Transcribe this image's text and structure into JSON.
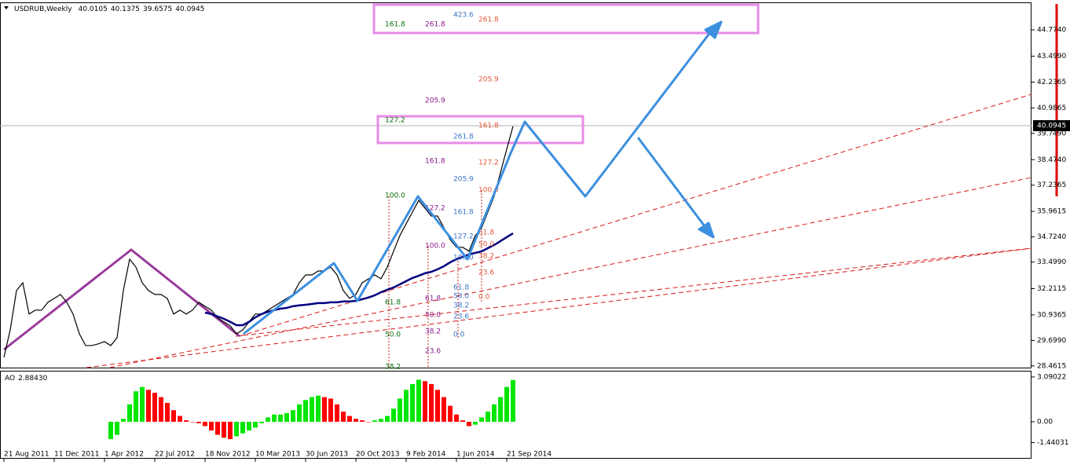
{
  "chart_data": {
    "type": "line",
    "symbol": "USDRUB,Weekly",
    "ohlc": [
      40.0105,
      40.1375,
      39.6575,
      40.0945
    ],
    "categories": [
      "21 Aug 2011",
      null,
      null,
      null,
      null,
      null,
      null,
      null,
      "11 Dec 2011",
      null,
      null,
      null,
      null,
      null,
      null,
      null,
      "1 Apr 2012",
      null,
      null,
      null,
      null,
      null,
      null,
      null,
      "22 Jul 2012",
      null,
      null,
      null,
      null,
      null,
      null,
      null,
      "18 Nov 2012",
      null,
      null,
      null,
      null,
      null,
      null,
      null,
      "10 Mar 2013",
      null,
      null,
      null,
      null,
      null,
      null,
      null,
      "30 Jun 2013",
      null,
      null,
      null,
      null,
      null,
      null,
      null,
      "20 Oct 2013",
      null,
      null,
      null,
      null,
      null,
      null,
      null,
      "9 Feb 2014",
      null,
      null,
      null,
      null,
      null,
      null,
      null,
      "1 Jun 2014",
      null,
      null,
      null,
      null,
      null,
      null,
      null,
      "21 Sep 2014",
      null
    ],
    "series": [
      {
        "color": "#000000",
        "values": [
          28.88,
          30.21,
          32.12,
          32.5,
          30.98,
          31.17,
          31.17,
          31.55,
          31.74,
          31.93,
          31.55,
          30.98,
          30.02,
          29.45,
          29.45,
          29.53,
          29.64,
          29.45,
          29.83,
          32.12,
          33.64,
          33.26,
          32.5,
          32.12,
          31.93,
          31.93,
          31.74,
          30.98,
          31.17,
          30.98,
          31.17,
          31.55,
          31.36,
          31.17,
          30.79,
          30.6,
          30.41,
          30.02,
          30.21,
          30.6,
          30.98,
          30.98,
          31.17,
          31.36,
          31.55,
          31.74,
          31.93,
          32.5,
          32.88,
          32.88,
          33.07,
          33.07,
          33.26,
          32.88,
          32.12,
          31.74,
          31.93,
          32.5,
          32.69,
          32.88,
          32.69,
          33.26,
          34.03,
          34.79,
          35.36,
          35.93,
          36.5,
          36.12,
          35.74,
          35.74,
          35.17,
          34.6,
          34.22,
          34.22,
          34.03,
          34.79,
          35.17,
          35.93,
          36.69,
          37.84,
          38.98,
          40.0945
        ]
      },
      {
        "color": "#000080",
        "values": [
          null,
          null,
          null,
          null,
          null,
          null,
          null,
          null,
          null,
          null,
          null,
          null,
          null,
          null,
          null,
          null,
          null,
          null,
          null,
          null,
          null,
          null,
          null,
          null,
          null,
          null,
          null,
          null,
          null,
          null,
          null,
          null,
          31.05,
          30.98,
          30.86,
          30.75,
          30.6,
          30.44,
          30.44,
          30.6,
          30.82,
          30.98,
          31.09,
          31.17,
          31.24,
          31.28,
          31.36,
          31.4,
          31.43,
          31.47,
          31.51,
          31.51,
          31.55,
          31.55,
          31.59,
          31.59,
          31.62,
          31.7,
          31.78,
          31.89,
          32.04,
          32.16,
          32.27,
          32.42,
          32.58,
          32.73,
          32.84,
          32.96,
          33.03,
          33.15,
          33.3,
          33.49,
          33.64,
          33.76,
          33.87,
          33.95,
          34.02,
          34.18,
          34.33,
          34.52,
          34.71,
          34.9
        ]
      }
    ],
    "ylim": [
      28.38,
      46.11
    ],
    "yticks": [
      28.4615,
      {
        "value": 29.699,
        "label": "29.6990"
      },
      30.9365,
      32.2115,
      {
        "value": 33.499,
        "label": "33.4990"
      },
      {
        "value": 34.724,
        "label": "34.7240"
      },
      35.9615,
      37.2365,
      {
        "value": 38.474,
        "label": "38.4740"
      },
      {
        "value": 39.749,
        "label": "39.7490"
      },
      40.9865,
      42.2365,
      {
        "value": 43.499,
        "label": "43.4990"
      },
      {
        "value": 44.774,
        "label": "44.7740"
      }
    ],
    "fib_levels": [
      {
        "color": "#0a6e0a",
        "labels": [
          "161.8",
          "127.2",
          "100.0",
          "61.8",
          "50.0",
          "38.2"
        ]
      },
      {
        "color": "#8a1a8a",
        "labels": [
          "261.8",
          "205.9",
          "161.8",
          "127.2",
          "100.0",
          "61.8",
          "50.0",
          "38.2",
          "23.6"
        ]
      },
      {
        "color": "#3a74c8",
        "labels": [
          "423.6",
          "261.8",
          "205.9",
          "161.8",
          "127.2",
          "100.0",
          "61.8",
          "50.0",
          "38.2",
          "23.6",
          "0.0"
        ]
      },
      {
        "color": "#e2583a",
        "labels": [
          "261.8",
          "205.9",
          "161.8",
          "127.2",
          "100.0",
          "61.8",
          "50.0",
          "38.2",
          "23.6",
          "0.0"
        ]
      }
    ],
    "indicator": {
      "type": "bar",
      "title": "AO",
      "current_label": "2.88430",
      "up_color": "#00e600",
      "down_color": "#ff0000",
      "values": [
        null,
        null,
        null,
        null,
        null,
        null,
        null,
        null,
        null,
        null,
        null,
        null,
        null,
        null,
        null,
        null,
        null,
        -1.2,
        -0.9,
        0.2,
        1.2,
        2.1,
        2.4,
        2.2,
        2.0,
        1.7,
        1.3,
        0.8,
        0.4,
        0.1,
        0.0,
        -0.1,
        -0.3,
        -0.6,
        -0.9,
        -1.1,
        -1.2,
        -1.0,
        -0.8,
        -0.6,
        -0.4,
        -0.1,
        0.3,
        0.5,
        0.5,
        0.6,
        0.8,
        1.2,
        1.5,
        1.7,
        1.8,
        1.7,
        1.6,
        1.2,
        0.7,
        0.4,
        0.2,
        0.1,
        0.0,
        0.1,
        0.2,
        0.4,
        0.9,
        1.6,
        2.2,
        2.6,
        2.9,
        2.8,
        2.6,
        2.2,
        1.7,
        1.1,
        0.5,
        0.1,
        -0.3,
        -0.2,
        0.3,
        0.7,
        1.2,
        1.7,
        2.4,
        2.8843
      ],
      "ylim": [
        -2.44,
        3.41
      ],
      "yticks": [
        3.09022,
        {
          "value": 0,
          "label": "0.00"
        },
        -1.44031
      ]
    }
  }
}
